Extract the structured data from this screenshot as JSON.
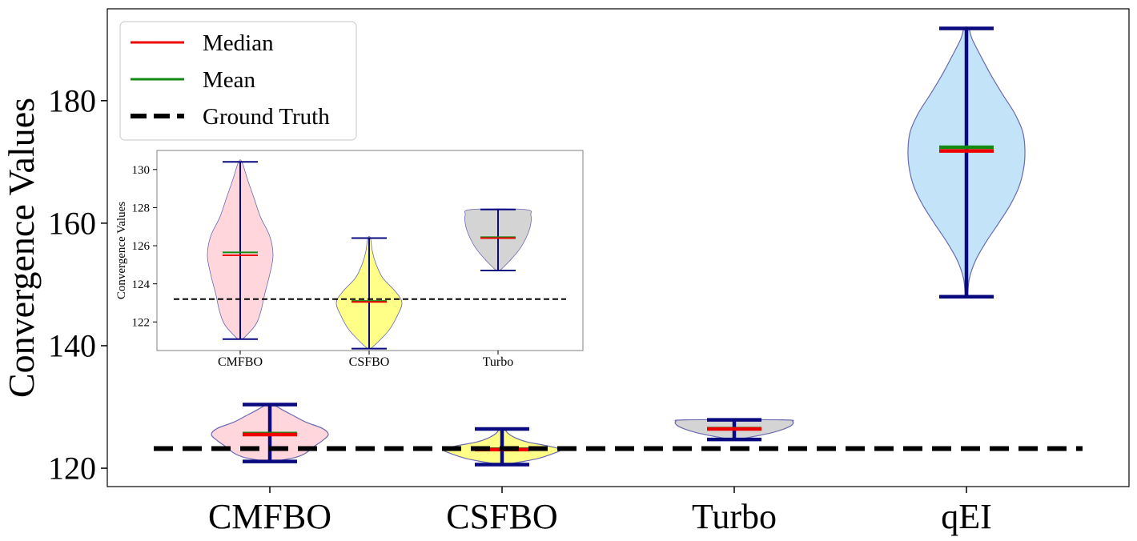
{
  "chart_data": [
    {
      "type": "violin",
      "title": "",
      "xlabel": "",
      "ylabel": "Convergence Values",
      "categories": [
        "CMFBO",
        "CSFBO",
        "Turbo",
        "qEI"
      ],
      "ylim": [
        117,
        195
      ],
      "yticks": [
        120,
        140,
        160,
        180
      ],
      "ground_truth": 123.2,
      "colors": {
        "CMFBO": "#ffd6dc",
        "CSFBO": "#ffff88",
        "Turbo": "#d4d4d4",
        "qEI": "#c3e4f8",
        "median": "#ee0000",
        "mean": "#138a13",
        "whisker": "#0a0a80",
        "ground_truth": "#000000",
        "violin_edge": "#6a6ab0"
      },
      "legend": {
        "placement": "upper-left",
        "entries": [
          {
            "label": "Median",
            "style": "red-line"
          },
          {
            "label": "Mean",
            "style": "green-line"
          },
          {
            "label": "Ground Truth",
            "style": "black-dashed-line"
          }
        ]
      },
      "violins": [
        {
          "name": "CMFBO",
          "min": 121.1,
          "max": 130.4,
          "median": 125.5,
          "mean": 125.65,
          "profile": [
            [
              121.1,
              0.08
            ],
            [
              121.8,
              0.45
            ],
            [
              122.5,
              0.62
            ],
            [
              123.5,
              0.75
            ],
            [
              124.5,
              0.9
            ],
            [
              125.5,
              1.0
            ],
            [
              126.5,
              0.9
            ],
            [
              127.5,
              0.62
            ],
            [
              128.5,
              0.42
            ],
            [
              129.5,
              0.22
            ],
            [
              130.4,
              0.05
            ]
          ]
        },
        {
          "name": "CSFBO",
          "min": 120.6,
          "max": 126.4,
          "median": 123.05,
          "mean": 123.1,
          "profile": [
            [
              120.6,
              0.05
            ],
            [
              121.0,
              0.3
            ],
            [
              121.6,
              0.62
            ],
            [
              122.3,
              0.85
            ],
            [
              123.0,
              1.0
            ],
            [
              123.6,
              0.8
            ],
            [
              124.3,
              0.42
            ],
            [
              125.0,
              0.22
            ],
            [
              125.7,
              0.1
            ],
            [
              126.4,
              0.04
            ]
          ]
        },
        {
          "name": "Turbo",
          "min": 124.7,
          "max": 127.9,
          "median": 126.4,
          "mean": 126.45,
          "profile": [
            [
              124.7,
              0.06
            ],
            [
              125.2,
              0.35
            ],
            [
              125.8,
              0.65
            ],
            [
              126.4,
              0.85
            ],
            [
              127.0,
              0.98
            ],
            [
              127.6,
              1.0
            ],
            [
              127.9,
              0.82
            ]
          ]
        },
        {
          "name": "qEI",
          "min": 148.0,
          "max": 191.8,
          "median": 171.8,
          "mean": 172.4,
          "profile": [
            [
              148.0,
              0.02
            ],
            [
              151,
              0.05
            ],
            [
              154,
              0.16
            ],
            [
              157,
              0.34
            ],
            [
              160,
              0.55
            ],
            [
              163,
              0.75
            ],
            [
              166,
              0.9
            ],
            [
              169,
              0.98
            ],
            [
              172,
              1.0
            ],
            [
              175,
              0.96
            ],
            [
              178,
              0.82
            ],
            [
              181,
              0.62
            ],
            [
              184,
              0.43
            ],
            [
              187,
              0.26
            ],
            [
              190,
              0.1
            ],
            [
              191.8,
              0.04
            ]
          ]
        }
      ]
    },
    {
      "type": "violin",
      "title": "",
      "xlabel": "",
      "ylabel": "Convergence Values",
      "categories": [
        "CMFBO",
        "CSFBO",
        "Turbo"
      ],
      "ylim": [
        120.5,
        131.0
      ],
      "yticks": [
        122,
        124,
        126,
        128,
        130
      ],
      "ground_truth": 123.2,
      "violins": [
        {
          "name": "CMFBO",
          "min": 121.1,
          "max": 130.4,
          "median": 125.5,
          "mean": 125.65,
          "profile": [
            [
              121.1,
              0.08
            ],
            [
              121.8,
              0.45
            ],
            [
              122.5,
              0.62
            ],
            [
              123.5,
              0.75
            ],
            [
              124.5,
              0.9
            ],
            [
              125.5,
              1.0
            ],
            [
              126.5,
              0.9
            ],
            [
              127.5,
              0.62
            ],
            [
              128.5,
              0.42
            ],
            [
              129.5,
              0.22
            ],
            [
              130.4,
              0.05
            ]
          ]
        },
        {
          "name": "CSFBO",
          "min": 120.6,
          "max": 126.4,
          "median": 123.05,
          "mean": 123.1,
          "profile": [
            [
              120.6,
              0.05
            ],
            [
              121.0,
              0.3
            ],
            [
              121.6,
              0.62
            ],
            [
              122.3,
              0.85
            ],
            [
              123.0,
              1.0
            ],
            [
              123.6,
              0.8
            ],
            [
              124.3,
              0.42
            ],
            [
              125.0,
              0.22
            ],
            [
              125.7,
              0.1
            ],
            [
              126.4,
              0.04
            ]
          ]
        },
        {
          "name": "Turbo",
          "min": 124.7,
          "max": 127.9,
          "median": 126.4,
          "mean": 126.45,
          "profile": [
            [
              124.7,
              0.06
            ],
            [
              125.2,
              0.35
            ],
            [
              125.8,
              0.65
            ],
            [
              126.4,
              0.85
            ],
            [
              127.0,
              0.98
            ],
            [
              127.6,
              1.0
            ],
            [
              127.9,
              0.82
            ]
          ]
        }
      ]
    }
  ]
}
